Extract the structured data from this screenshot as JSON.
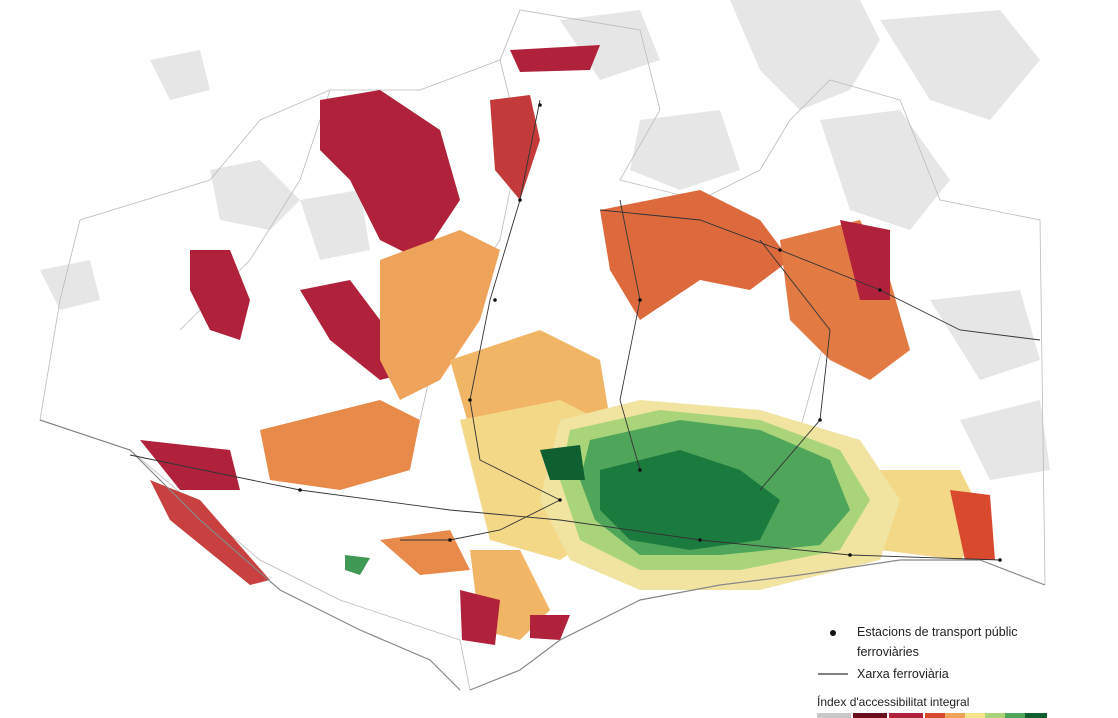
{
  "legend": {
    "stations": "Estacions de transport públic ferroviàries",
    "railway": "Xarxa ferroviària",
    "index_title": "Índex d'accessibilitat integral"
  }
}
